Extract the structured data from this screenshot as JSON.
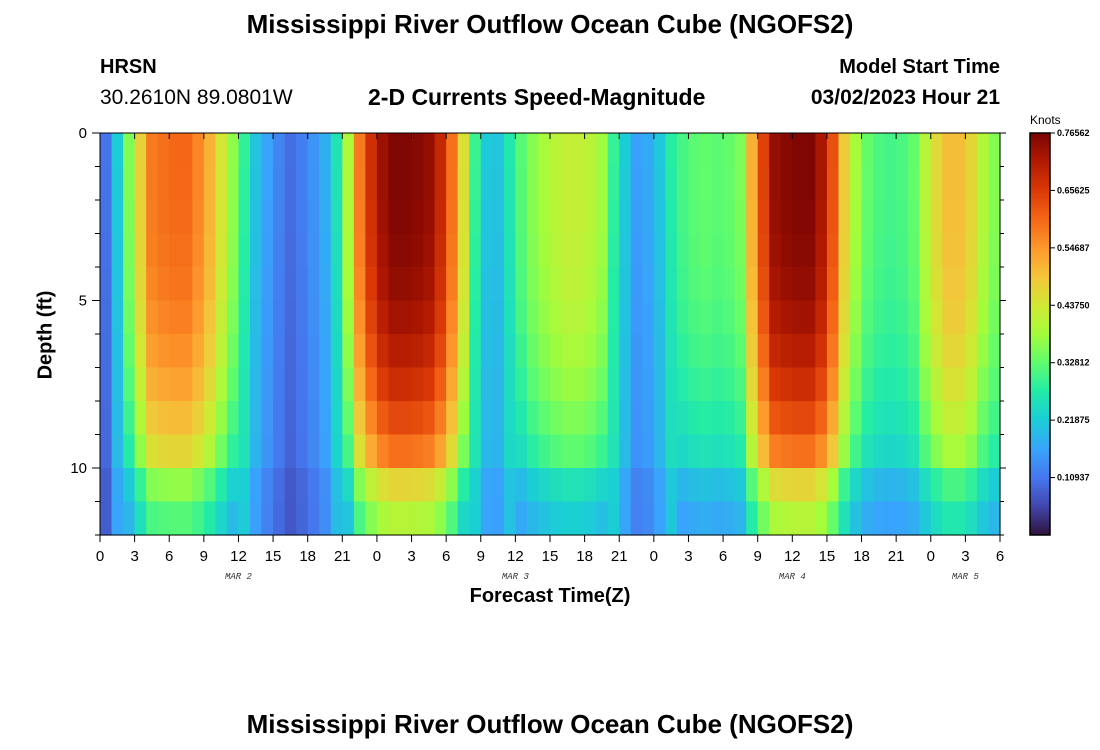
{
  "header": {
    "title": "Mississippi River Outflow Ocean Cube (NGOFS2)",
    "station": "HRSN",
    "coords": "30.2610N  89.0801W",
    "subtitle": "2-D Currents Speed-Magnitude",
    "model_start_label": "Model Start Time",
    "model_start_value": "03/02/2023 Hour 21"
  },
  "footer": {
    "title": "Mississippi River Outflow Ocean Cube (NGOFS2)"
  },
  "chart_data": {
    "type": "heatmap",
    "title": "2-D Currents Speed-Magnitude",
    "xlabel": "Forecast Time(Z)",
    "ylabel": "Depth (ft)",
    "x_tick_labels": [
      "0",
      "3",
      "6",
      "9",
      "12",
      "15",
      "18",
      "21",
      "0",
      "3",
      "6",
      "9",
      "12",
      "15",
      "18",
      "21",
      "0",
      "3",
      "6",
      "9",
      "12",
      "15",
      "18",
      "21",
      "0",
      "3",
      "6"
    ],
    "x_range_hours": [
      0,
      78
    ],
    "day_labels": [
      {
        "label": "MAR 2",
        "hour": 12
      },
      {
        "label": "MAR 3",
        "hour": 36
      },
      {
        "label": "MAR 4",
        "hour": 60
      },
      {
        "label": "MAR 5",
        "hour": 75
      }
    ],
    "y_tick_labels": [
      "0",
      "5",
      "10"
    ],
    "y_range_ft": [
      0,
      12
    ],
    "colorbar": {
      "title": "Knots",
      "min": 0.0,
      "max": 0.7656,
      "tick_labels": [
        "0.76562",
        "0.65625",
        "0.54687",
        "0.43750",
        "0.32812",
        "0.21875",
        "0.10937"
      ]
    },
    "speed_profile_surface_knots": [
      {
        "hour": 0,
        "knots": 0.05
      },
      {
        "hour": 1.5,
        "knots": 0.22
      },
      {
        "hour": 3,
        "knots": 0.42
      },
      {
        "hour": 4.5,
        "knots": 0.58
      },
      {
        "hour": 6,
        "knots": 0.6
      },
      {
        "hour": 7.5,
        "knots": 0.6
      },
      {
        "hour": 9,
        "knots": 0.55
      },
      {
        "hour": 10.5,
        "knots": 0.44
      },
      {
        "hour": 12,
        "knots": 0.33
      },
      {
        "hour": 13.5,
        "knots": 0.21
      },
      {
        "hour": 15,
        "knots": 0.14
      },
      {
        "hour": 16.5,
        "knots": 0.1
      },
      {
        "hour": 18,
        "knots": 0.13
      },
      {
        "hour": 19.5,
        "knots": 0.18
      },
      {
        "hour": 21,
        "knots": 0.3
      },
      {
        "hour": 22.5,
        "knots": 0.58
      },
      {
        "hour": 24,
        "knots": 0.72
      },
      {
        "hour": 25.5,
        "knots": 0.76
      },
      {
        "hour": 27,
        "knots": 0.76
      },
      {
        "hour": 28.5,
        "knots": 0.74
      },
      {
        "hour": 30,
        "knots": 0.66
      },
      {
        "hour": 31.5,
        "knots": 0.45
      },
      {
        "hour": 33,
        "knots": 0.22
      },
      {
        "hour": 34.5,
        "knots": 0.21
      },
      {
        "hour": 36,
        "knots": 0.3
      },
      {
        "hour": 37.5,
        "knots": 0.36
      },
      {
        "hour": 39,
        "knots": 0.4
      },
      {
        "hour": 40.5,
        "knots": 0.42
      },
      {
        "hour": 42,
        "knots": 0.42
      },
      {
        "hour": 43.5,
        "knots": 0.38
      },
      {
        "hour": 45,
        "knots": 0.25
      },
      {
        "hour": 46.5,
        "knots": 0.16
      },
      {
        "hour": 48,
        "knots": 0.18
      },
      {
        "hour": 49.5,
        "knots": 0.28
      },
      {
        "hour": 51,
        "knots": 0.32
      },
      {
        "hour": 52.5,
        "knots": 0.33
      },
      {
        "hour": 54,
        "knots": 0.32
      },
      {
        "hour": 55.5,
        "knots": 0.35
      },
      {
        "hour": 57,
        "knots": 0.6
      },
      {
        "hour": 58.5,
        "knots": 0.74
      },
      {
        "hour": 60,
        "knots": 0.76
      },
      {
        "hour": 61.5,
        "knots": 0.76
      },
      {
        "hour": 63,
        "knots": 0.7
      },
      {
        "hour": 64.5,
        "knots": 0.48
      },
      {
        "hour": 66,
        "knots": 0.34
      },
      {
        "hour": 67.5,
        "knots": 0.31
      },
      {
        "hour": 69,
        "knots": 0.3
      },
      {
        "hour": 70.5,
        "knots": 0.33
      },
      {
        "hour": 72,
        "knots": 0.44
      },
      {
        "hour": 73.5,
        "knots": 0.5
      },
      {
        "hour": 75,
        "knots": 0.5
      },
      {
        "hour": 76.5,
        "knots": 0.4
      },
      {
        "hour": 78,
        "knots": 0.34
      }
    ]
  }
}
